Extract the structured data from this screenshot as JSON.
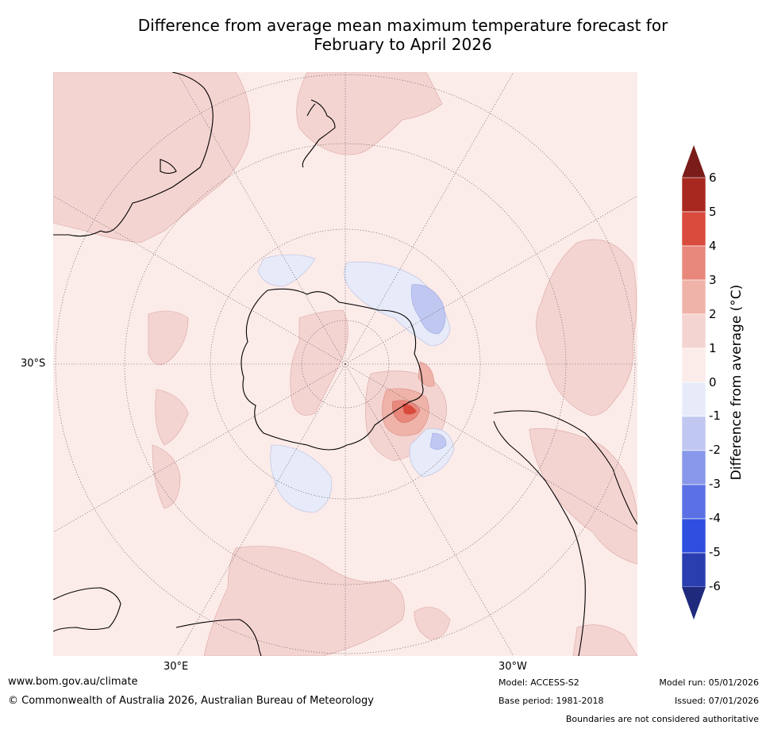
{
  "title": {
    "line1": "Difference from average mean maximum temperature forecast for",
    "line2": "February to April 2026"
  },
  "map": {
    "projection": "south polar stereographic",
    "lat_labels": [
      "30°S"
    ],
    "lon_labels": [
      "30°E",
      "30°W"
    ]
  },
  "colorbar": {
    "title": "Difference from average (°C)",
    "tick_labels": [
      "6",
      "5",
      "4",
      "3",
      "2",
      "1",
      "0",
      "-1",
      "-2",
      "-3",
      "-4",
      "-5",
      "-6"
    ],
    "levels": [
      {
        "from": 6,
        "to": null,
        "color": "#7a1c1a"
      },
      {
        "from": 5,
        "to": 6,
        "color": "#a8281f"
      },
      {
        "from": 4,
        "to": 5,
        "color": "#d94b3d"
      },
      {
        "from": 3,
        "to": 4,
        "color": "#e8887c"
      },
      {
        "from": 2,
        "to": 3,
        "color": "#efb3a9"
      },
      {
        "from": 1,
        "to": 2,
        "color": "#f4d4d1"
      },
      {
        "from": 0,
        "to": 1,
        "color": "#fbebe9"
      },
      {
        "from": -1,
        "to": 0,
        "color": "#e7ebf9"
      },
      {
        "from": -2,
        "to": -1,
        "color": "#c0c8f1"
      },
      {
        "from": -3,
        "to": -2,
        "color": "#8998ea"
      },
      {
        "from": -4,
        "to": -3,
        "color": "#5b70e4"
      },
      {
        "from": -5,
        "to": -4,
        "color": "#2f4fe0"
      },
      {
        "from": -6,
        "to": -5,
        "color": "#2a3eaf"
      },
      {
        "from": null,
        "to": -6,
        "color": "#1f2a7d"
      }
    ]
  },
  "footer": {
    "website": "www.bom.gov.au/climate",
    "copyright": "© Commonwealth of Australia 2026, Australian Bureau of Meteorology",
    "model": "Model: ACCESS-S2",
    "base_period": "Base period: 1981-2018",
    "model_run": "Model run: 05/01/2026",
    "issued": "Issued: 07/01/2026",
    "disclaimer": "Boundaries are not considered authoritative"
  }
}
